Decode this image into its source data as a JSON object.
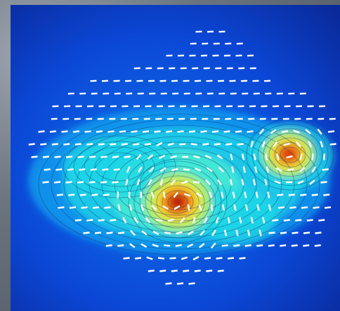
{
  "image": {
    "kind": "polarization-vector-map",
    "colormap": [
      "#0a2a9c",
      "#0b47d6",
      "#0e73ec",
      "#12a6f0",
      "#1fd8e6",
      "#4ff0d0",
      "#b7f066",
      "#f6df2a",
      "#f08a1a",
      "#d8320f",
      "#a50f0b"
    ],
    "vector_color": "#ffffff",
    "frame_color": "#5b6470",
    "peaks": [
      {
        "label": "primary-peak",
        "relative_intensity": 1.0
      },
      {
        "label": "secondary-peak",
        "relative_intensity": 0.78
      }
    ]
  }
}
